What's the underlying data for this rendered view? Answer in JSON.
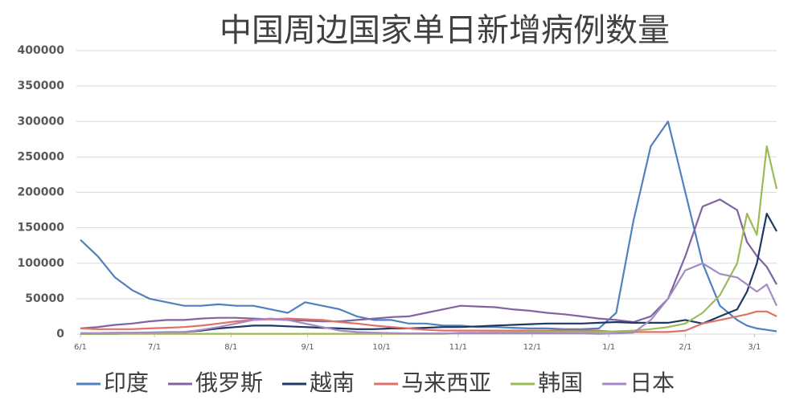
{
  "chart_data": {
    "type": "line",
    "title": "中国周边国家单日新增病例数量",
    "x": [
      0,
      7,
      14,
      21,
      28,
      35,
      42,
      49,
      56,
      63,
      70,
      77,
      84,
      91,
      98,
      105,
      112,
      119,
      126,
      133,
      140,
      147,
      154,
      161,
      168,
      175,
      182,
      189,
      196,
      203,
      210,
      217,
      224,
      231,
      238,
      245,
      252,
      259,
      266,
      270,
      274,
      278,
      282
    ],
    "xlim": [
      0,
      282
    ],
    "xticks": [
      {
        "value": 0,
        "label": "6/1"
      },
      {
        "value": 30,
        "label": "7/1"
      },
      {
        "value": 61,
        "label": "8/1"
      },
      {
        "value": 92,
        "label": "9/1"
      },
      {
        "value": 122,
        "label": "10/1"
      },
      {
        "value": 153,
        "label": "11/1"
      },
      {
        "value": 183,
        "label": "12/1"
      },
      {
        "value": 214,
        "label": "1/1"
      },
      {
        "value": 245,
        "label": "2/1"
      },
      {
        "value": 273,
        "label": "3/1"
      }
    ],
    "ylim": [
      0,
      400000
    ],
    "yticks": [
      0,
      50000,
      100000,
      150000,
      200000,
      250000,
      300000,
      350000,
      400000
    ],
    "grid": true,
    "series": [
      {
        "name": "印度",
        "color": "#4f81bd",
        "values": [
          133000,
          110000,
          80000,
          62000,
          50000,
          45000,
          40000,
          40000,
          42000,
          40000,
          40000,
          35000,
          30000,
          45000,
          40000,
          35000,
          25000,
          20000,
          20000,
          15000,
          15000,
          12000,
          12000,
          10000,
          10000,
          9000,
          8000,
          8000,
          7000,
          7000,
          8000,
          30000,
          160000,
          265000,
          300000,
          200000,
          100000,
          40000,
          20000,
          12000,
          8000,
          6000,
          4000
        ]
      },
      {
        "name": "俄罗斯",
        "color": "#8064a2",
        "values": [
          8000,
          10000,
          13000,
          15000,
          18000,
          20000,
          20000,
          22000,
          23000,
          23000,
          22000,
          21000,
          20000,
          19000,
          18000,
          18000,
          20000,
          22000,
          24000,
          25000,
          30000,
          35000,
          40000,
          39000,
          38000,
          35000,
          33000,
          30000,
          28000,
          25000,
          22000,
          20000,
          17000,
          25000,
          50000,
          110000,
          180000,
          190000,
          175000,
          130000,
          110000,
          95000,
          70000
        ]
      },
      {
        "name": "越南",
        "color": "#1f3864",
        "values": [
          500,
          500,
          500,
          1000,
          1500,
          2000,
          3000,
          5000,
          8000,
          10000,
          12000,
          12000,
          11000,
          10000,
          9000,
          8000,
          7000,
          7000,
          8000,
          8000,
          9000,
          10000,
          10000,
          11000,
          12000,
          13000,
          14000,
          15000,
          15000,
          15000,
          16000,
          17000,
          16000,
          16000,
          16000,
          20000,
          15000,
          25000,
          35000,
          60000,
          100000,
          170000,
          145000
        ]
      },
      {
        "name": "马来西亚",
        "color": "#e07068",
        "values": [
          8000,
          7000,
          7000,
          7000,
          8000,
          9000,
          10000,
          12000,
          15000,
          18000,
          20000,
          21000,
          22000,
          21000,
          20000,
          17000,
          15000,
          12000,
          10000,
          8000,
          6000,
          5000,
          5000,
          5000,
          5000,
          5000,
          5000,
          5000,
          5000,
          5000,
          5000,
          3000,
          3000,
          3000,
          3000,
          5000,
          15000,
          20000,
          25000,
          28000,
          32000,
          32000,
          25000
        ]
      },
      {
        "name": "韩国",
        "color": "#9bbb59",
        "values": [
          500,
          500,
          500,
          500,
          500,
          500,
          500,
          500,
          500,
          500,
          500,
          500,
          500,
          500,
          500,
          500,
          500,
          500,
          500,
          500,
          500,
          500,
          2000,
          2000,
          2500,
          2500,
          3000,
          3000,
          3000,
          3000,
          3000,
          4000,
          5000,
          7000,
          10000,
          15000,
          30000,
          55000,
          100000,
          170000,
          140000,
          265000,
          205000
        ]
      },
      {
        "name": "日本",
        "color": "#a58bc5",
        "values": [
          1500,
          1500,
          2000,
          2000,
          2500,
          3000,
          3000,
          6000,
          10000,
          15000,
          20000,
          22000,
          20000,
          15000,
          10000,
          5000,
          3000,
          2000,
          1500,
          1000,
          1000,
          1000,
          1000,
          1000,
          1000,
          1000,
          1000,
          1000,
          1000,
          1000,
          500,
          1000,
          2000,
          20000,
          50000,
          90000,
          100000,
          85000,
          80000,
          70000,
          60000,
          70000,
          40000
        ]
      }
    ]
  }
}
